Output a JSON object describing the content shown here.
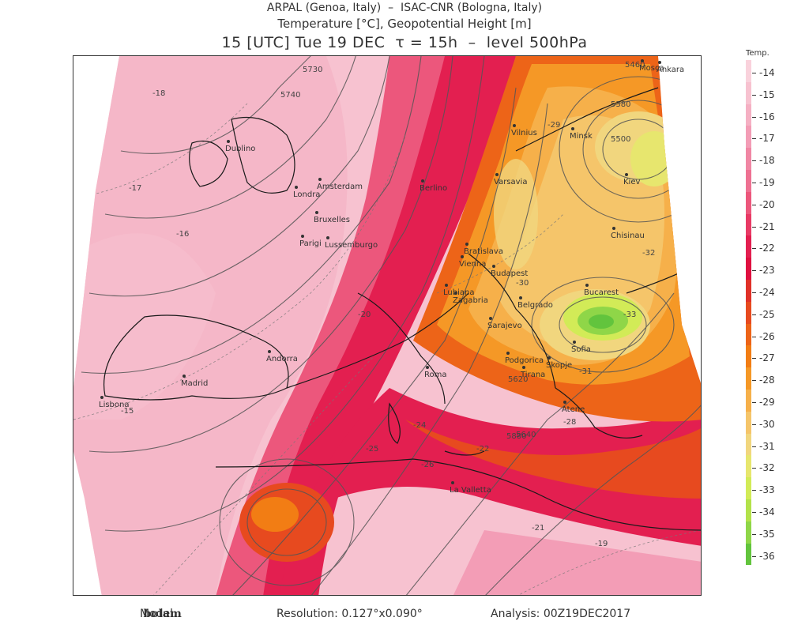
{
  "header": {
    "line1": "ARPAL (Genoa, Italy)  –  ISAC-CNR (Bologna, Italy)",
    "line2": "Temperature [°C], Geopotential Height [m]",
    "line3": "15 [UTC] Tue 19 DEC  τ = 15h  –  level 500hPa"
  },
  "colorbar": {
    "title": "Temp.",
    "levels": [
      "-14",
      "-15",
      "-16",
      "-17",
      "-18",
      "-19",
      "-20",
      "-21",
      "-22",
      "-23",
      "-24",
      "-25",
      "-26",
      "-27",
      "-28",
      "-29",
      "-30",
      "-31",
      "-32",
      "-33",
      "-34",
      "-35",
      "-36"
    ],
    "colors": [
      "#f9d2dc",
      "#f7c2d0",
      "#f5b0c3",
      "#f39db6",
      "#f087a4",
      "#ee7192",
      "#ec577c",
      "#e83a65",
      "#e31f50",
      "#df1040",
      "#e03128",
      "#e74a1f",
      "#ed6418",
      "#f27d14",
      "#f59826",
      "#f6b04a",
      "#f5c56a",
      "#f1d67e",
      "#e7e66e",
      "#d2eb57",
      "#b3e24a",
      "#8fd648",
      "#62c43d"
    ]
  },
  "map": {
    "cities": [
      {
        "name": "Dublino"
      },
      {
        "name": "Londra"
      },
      {
        "name": "Amsterdam"
      },
      {
        "name": "Bruxelles"
      },
      {
        "name": "Parigi"
      },
      {
        "name": "Lussemburgo"
      },
      {
        "name": "Berlino"
      },
      {
        "name": "Varsavia"
      },
      {
        "name": "Vilnius"
      },
      {
        "name": "Minsk"
      },
      {
        "name": "Mosca"
      },
      {
        "name": "Kiev"
      },
      {
        "name": "Chisinau"
      },
      {
        "name": "Bratislava"
      },
      {
        "name": "Vienna"
      },
      {
        "name": "Budapest"
      },
      {
        "name": "Lubiana"
      },
      {
        "name": "Zagabria"
      },
      {
        "name": "Belgrado"
      },
      {
        "name": "Sarajevo"
      },
      {
        "name": "Bucarest"
      },
      {
        "name": "Sofia"
      },
      {
        "name": "Skopje"
      },
      {
        "name": "Podgorica"
      },
      {
        "name": "Tirana"
      },
      {
        "name": "Roma"
      },
      {
        "name": "Madrid"
      },
      {
        "name": "Lisbona"
      },
      {
        "name": "Andorra"
      },
      {
        "name": "Atene"
      },
      {
        "name": "La Valletta"
      },
      {
        "name": "Ankara"
      }
    ],
    "contour_labels": [
      "5730",
      "5740",
      "5460",
      "5380",
      "5500",
      "5640",
      "5620",
      "5880",
      "-18",
      "-17",
      "-16",
      "-15",
      "-20",
      "-21",
      "-22",
      "-24",
      "-25",
      "-26",
      "-28",
      "-29",
      "-30",
      "-31",
      "-32",
      "-33",
      "-19"
    ]
  },
  "footer": {
    "model_label": "Model:",
    "model_value": "bolam",
    "resolution": "Resolution: 0.127°x0.090°",
    "analysis": "Analysis: 00Z19DEC2017"
  }
}
